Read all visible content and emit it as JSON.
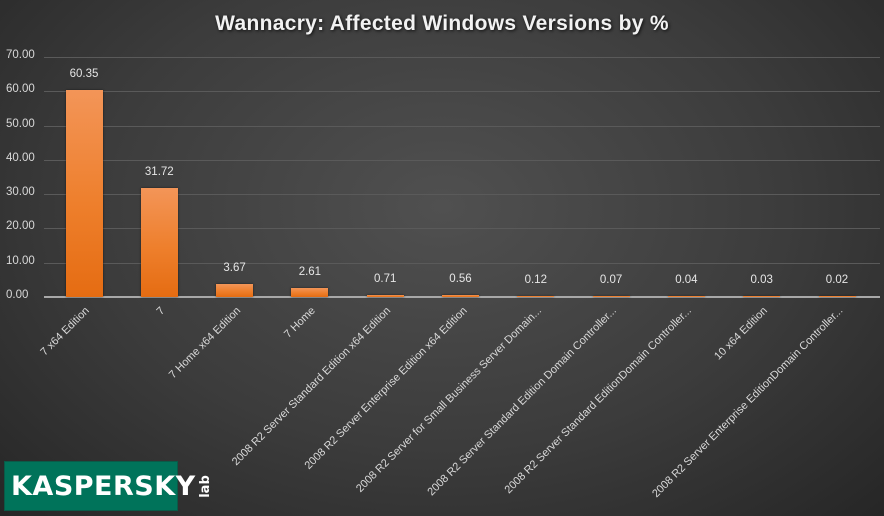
{
  "chart_data": {
    "type": "bar",
    "title": "Wannacry: Affected Windows Versions by %",
    "xlabel": "",
    "ylabel": "",
    "ylim": [
      0,
      70
    ],
    "y_ticks": [
      "0.00",
      "10.00",
      "20.00",
      "30.00",
      "40.00",
      "50.00",
      "60.00",
      "70.00"
    ],
    "grid": true,
    "legend": null,
    "categories": [
      "7 x64 Edition",
      "7",
      "7 Home x64 Edition",
      "7 Home",
      "2008 R2 Server Standard Edition x64 Edition",
      "2008 R2 Server Enterprise Edition x64 Edition",
      "2008 R2 Server for Small Business Server Domain...",
      "2008 R2 Server Standard Edition Domain Controller...",
      "2008 R2 Server Standard EditionDomain Controller...",
      "10 x64 Edition",
      "2008 R2 Server Enterprise EditionDomain Controller..."
    ],
    "values": [
      60.35,
      31.72,
      3.67,
      2.61,
      0.71,
      0.56,
      0.12,
      0.07,
      0.04,
      0.03,
      0.02
    ],
    "data_labels": [
      "60.35",
      "31.72",
      "3.67",
      "2.61",
      "0.71",
      "0.56",
      "0.12",
      "0.07",
      "0.04",
      "0.03",
      "0.02"
    ],
    "bar_color": "#ee7f2c"
  },
  "branding": {
    "logo_text": "KASPERSKY",
    "logo_suffix": "lab",
    "logo_bg": "#00735a"
  },
  "colors": {
    "background": "#3c3c3c",
    "title": "#f2f2f2",
    "gridline": "#5a5a5a",
    "axis": "#a8a8a8"
  }
}
